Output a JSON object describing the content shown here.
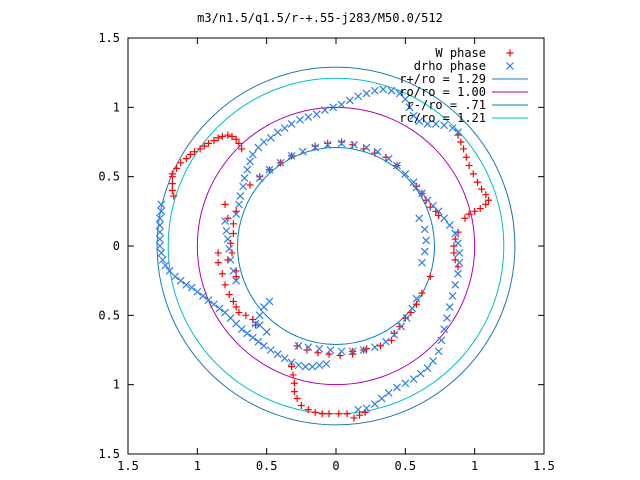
{
  "chart_data": {
    "type": "scatter",
    "title": "m3/n1.5/q1.5/r-+.55-j283/M50.0/512",
    "xlim": [
      -1.5,
      1.5
    ],
    "ylim": [
      -1.5,
      1.5
    ],
    "xticks": [
      {
        "value": -1.5,
        "label": "1.5"
      },
      {
        "value": -1,
        "label": "1"
      },
      {
        "value": -0.5,
        "label": "0.5"
      },
      {
        "value": 0,
        "label": "0"
      },
      {
        "value": 0.5,
        "label": "0.5"
      },
      {
        "value": 1,
        "label": "1"
      },
      {
        "value": 1.5,
        "label": "1.5"
      }
    ],
    "yticks": [
      {
        "value": 1.5,
        "label": "1.5"
      },
      {
        "value": 1,
        "label": "1"
      },
      {
        "value": 0.5,
        "label": "0.5"
      },
      {
        "value": 0,
        "label": "0"
      },
      {
        "value": -0.5,
        "label": "0.5"
      },
      {
        "value": -1,
        "label": "1"
      },
      {
        "value": -1.5,
        "label": "1.5"
      }
    ],
    "grid": false,
    "legend_position": "top-right",
    "series": [
      {
        "name": "W phase",
        "marker": "plus",
        "color": "#ff0000",
        "points": [
          [
            -1.18,
            0.52
          ],
          [
            -1.15,
            0.56
          ],
          [
            -1.12,
            0.6
          ],
          [
            -1.08,
            0.63
          ],
          [
            -1.05,
            0.66
          ],
          [
            -1.02,
            0.68
          ],
          [
            -0.98,
            0.7
          ],
          [
            -0.95,
            0.72
          ],
          [
            -0.92,
            0.74
          ],
          [
            -0.88,
            0.76
          ],
          [
            -0.85,
            0.78
          ],
          [
            -0.82,
            0.79
          ],
          [
            -0.78,
            0.8
          ],
          [
            -0.75,
            0.79
          ],
          [
            -0.72,
            0.77
          ],
          [
            -0.7,
            0.74
          ],
          [
            -0.68,
            0.7
          ],
          [
            -1.18,
            0.5
          ],
          [
            -1.18,
            0.45
          ],
          [
            -1.18,
            0.4
          ],
          [
            -1.17,
            0.36
          ],
          [
            0.88,
            0.8
          ],
          [
            0.9,
            0.75
          ],
          [
            0.92,
            0.7
          ],
          [
            0.94,
            0.64
          ],
          [
            0.96,
            0.58
          ],
          [
            0.99,
            0.52
          ],
          [
            1.02,
            0.46
          ],
          [
            1.05,
            0.41
          ],
          [
            1.08,
            0.37
          ],
          [
            1.1,
            0.33
          ],
          [
            1.08,
            0.3
          ],
          [
            1.04,
            0.27
          ],
          [
            1.0,
            0.25
          ],
          [
            0.96,
            0.23
          ],
          [
            0.93,
            0.2
          ],
          [
            0.88,
            0.1
          ],
          [
            0.86,
            0.05
          ],
          [
            0.85,
            0.0
          ],
          [
            0.85,
            -0.05
          ],
          [
            0.86,
            -0.1
          ],
          [
            0.88,
            -0.15
          ],
          [
            -0.32,
            -0.87
          ],
          [
            -0.31,
            -0.93
          ],
          [
            -0.3,
            -0.99
          ],
          [
            -0.3,
            -1.05
          ],
          [
            -0.28,
            -1.1
          ],
          [
            -0.25,
            -1.15
          ],
          [
            -0.2,
            -1.18
          ],
          [
            -0.15,
            -1.2
          ],
          [
            -0.1,
            -1.21
          ],
          [
            -0.05,
            -1.21
          ],
          [
            0.02,
            -1.21
          ],
          [
            0.08,
            -1.21
          ],
          [
            0.13,
            -1.24
          ],
          [
            0.17,
            -1.22
          ],
          [
            0.21,
            -1.2
          ],
          [
            -0.85,
            -0.05
          ],
          [
            -0.85,
            -0.12
          ],
          [
            -0.82,
            -0.2
          ],
          [
            -0.8,
            -0.28
          ],
          [
            -0.77,
            -0.35
          ],
          [
            -0.74,
            -0.4
          ],
          [
            -0.72,
            -0.44
          ],
          [
            -0.7,
            -0.48
          ],
          [
            -0.65,
            -0.5
          ],
          [
            -0.6,
            -0.53
          ],
          [
            -0.58,
            -0.57
          ],
          [
            -0.72,
            -0.22
          ],
          [
            -0.72,
            -0.18
          ],
          [
            -0.78,
            -0.1
          ],
          [
            -0.75,
            -0.05
          ],
          [
            -0.76,
            0.02
          ],
          [
            -0.74,
            0.09
          ],
          [
            -0.74,
            0.16
          ],
          [
            -0.72,
            0.25
          ],
          [
            -0.78,
            0.2
          ],
          [
            -0.8,
            0.3
          ],
          [
            -0.62,
            0.44
          ],
          [
            -0.55,
            0.5
          ],
          [
            -0.48,
            0.55
          ],
          [
            -0.4,
            0.6
          ],
          [
            -0.32,
            0.65
          ],
          [
            -0.15,
            0.72
          ],
          [
            -0.06,
            0.74
          ],
          [
            0.04,
            0.75
          ],
          [
            0.12,
            0.73
          ],
          [
            0.2,
            0.7
          ],
          [
            0.28,
            0.67
          ],
          [
            0.36,
            0.64
          ],
          [
            0.44,
            0.58
          ],
          [
            0.58,
            0.43
          ],
          [
            0.62,
            0.38
          ],
          [
            0.65,
            0.33
          ],
          [
            0.68,
            0.28
          ],
          [
            0.72,
            0.25
          ],
          [
            0.74,
            0.22
          ],
          [
            0.68,
            -0.22
          ],
          [
            0.62,
            -0.34
          ],
          [
            0.58,
            -0.42
          ],
          [
            0.54,
            -0.48
          ],
          [
            0.5,
            -0.52
          ],
          [
            0.46,
            -0.58
          ],
          [
            0.42,
            -0.63
          ],
          [
            0.2,
            -0.75
          ],
          [
            0.12,
            -0.78
          ],
          [
            0.03,
            -0.79
          ],
          [
            -0.05,
            -0.78
          ],
          [
            -0.13,
            -0.77
          ],
          [
            -0.21,
            -0.75
          ],
          [
            -0.28,
            -0.72
          ],
          [
            0.12,
            -0.76
          ],
          [
            0.22,
            -0.74
          ],
          [
            0.32,
            -0.72
          ],
          [
            0.4,
            -0.68
          ]
        ]
      },
      {
        "name": "drho phase",
        "marker": "cross",
        "color": "#2f7ee6",
        "points": [
          [
            -1.26,
            0.3
          ],
          [
            -1.26,
            0.25
          ],
          [
            -1.27,
            0.2
          ],
          [
            -1.27,
            0.15
          ],
          [
            -1.27,
            0.1
          ],
          [
            -1.27,
            0.05
          ],
          [
            -1.27,
            0.0
          ],
          [
            -1.26,
            -0.05
          ],
          [
            -1.25,
            -0.1
          ],
          [
            -1.23,
            -0.14
          ],
          [
            -1.2,
            -0.18
          ],
          [
            -1.16,
            -0.22
          ],
          [
            -1.12,
            -0.25
          ],
          [
            -1.08,
            -0.28
          ],
          [
            -1.04,
            -0.3
          ],
          [
            -1.0,
            -0.33
          ],
          [
            -0.96,
            -0.36
          ],
          [
            -0.92,
            -0.39
          ],
          [
            -0.88,
            -0.42
          ],
          [
            -0.84,
            -0.45
          ],
          [
            -0.8,
            -0.48
          ],
          [
            -0.76,
            -0.52
          ],
          [
            -0.72,
            -0.56
          ],
          [
            -0.68,
            -0.6
          ],
          [
            -0.64,
            -0.63
          ],
          [
            -0.6,
            -0.66
          ],
          [
            -0.56,
            -0.69
          ],
          [
            -0.52,
            -0.72
          ],
          [
            -0.47,
            -0.75
          ],
          [
            -0.42,
            -0.78
          ],
          [
            -0.37,
            -0.81
          ],
          [
            -0.32,
            -0.84
          ],
          [
            -0.27,
            -0.86
          ],
          [
            -0.22,
            -0.87
          ],
          [
            -0.17,
            -0.87
          ],
          [
            -0.12,
            -0.86
          ],
          [
            -0.07,
            -0.85
          ],
          [
            -0.72,
            0.23
          ],
          [
            -0.7,
            0.3
          ],
          [
            -0.69,
            0.36
          ],
          [
            -0.67,
            0.43
          ],
          [
            -0.66,
            0.49
          ],
          [
            -0.64,
            0.55
          ],
          [
            -0.62,
            0.61
          ],
          [
            -0.6,
            0.66
          ],
          [
            -0.56,
            0.71
          ],
          [
            -0.52,
            0.75
          ],
          [
            -0.47,
            0.78
          ],
          [
            -0.42,
            0.82
          ],
          [
            -0.37,
            0.85
          ],
          [
            -0.32,
            0.88
          ],
          [
            -0.26,
            0.91
          ],
          [
            -0.2,
            0.93
          ],
          [
            -0.14,
            0.95
          ],
          [
            -0.08,
            0.98
          ],
          [
            -0.02,
            1.0
          ],
          [
            0.04,
            1.02
          ],
          [
            0.1,
            1.05
          ],
          [
            0.16,
            1.08
          ],
          [
            0.22,
            1.1
          ],
          [
            0.28,
            1.12
          ],
          [
            0.34,
            1.13
          ],
          [
            0.4,
            1.12
          ],
          [
            0.46,
            1.1
          ],
          [
            0.5,
            1.06
          ],
          [
            0.53,
            1.0
          ],
          [
            0.56,
            0.94
          ],
          [
            0.6,
            0.9
          ],
          [
            0.66,
            0.88
          ],
          [
            0.72,
            0.88
          ],
          [
            0.78,
            0.87
          ],
          [
            0.84,
            0.85
          ],
          [
            0.88,
            0.82
          ],
          [
            -0.72,
            -0.25
          ],
          [
            -0.74,
            -0.18
          ],
          [
            -0.76,
            -0.1
          ],
          [
            -0.77,
            -0.02
          ],
          [
            -0.78,
            0.05
          ],
          [
            -0.79,
            0.11
          ],
          [
            -0.8,
            0.18
          ],
          [
            0.56,
            0.46
          ],
          [
            0.58,
            0.42
          ],
          [
            0.62,
            0.38
          ],
          [
            0.66,
            0.33
          ],
          [
            0.7,
            0.29
          ],
          [
            0.74,
            0.25
          ],
          [
            0.78,
            0.2
          ],
          [
            0.82,
            0.15
          ],
          [
            0.86,
            0.09
          ],
          [
            0.88,
            0.02
          ],
          [
            0.89,
            -0.05
          ],
          [
            0.89,
            -0.12
          ],
          [
            0.88,
            -0.2
          ],
          [
            0.86,
            -0.28
          ],
          [
            0.84,
            -0.36
          ],
          [
            0.82,
            -0.44
          ],
          [
            0.8,
            -0.52
          ],
          [
            0.78,
            -0.6
          ],
          [
            0.76,
            -0.68
          ],
          [
            0.74,
            -0.76
          ],
          [
            0.7,
            -0.83
          ],
          [
            0.66,
            -0.88
          ],
          [
            0.61,
            -0.92
          ],
          [
            0.56,
            -0.96
          ],
          [
            0.5,
            -0.99
          ],
          [
            0.44,
            -1.02
          ],
          [
            0.38,
            -1.06
          ],
          [
            0.33,
            -1.1
          ],
          [
            0.28,
            -1.14
          ],
          [
            0.22,
            -1.17
          ],
          [
            0.16,
            -1.18
          ],
          [
            -0.27,
            -0.72
          ],
          [
            -0.2,
            -0.73
          ],
          [
            -0.12,
            -0.74
          ],
          [
            -0.04,
            -0.75
          ],
          [
            0.04,
            -0.76
          ],
          [
            0.12,
            -0.76
          ],
          [
            0.2,
            -0.75
          ],
          [
            0.28,
            -0.73
          ],
          [
            0.36,
            -0.69
          ],
          [
            0.42,
            -0.64
          ],
          [
            0.47,
            -0.58
          ],
          [
            0.51,
            -0.52
          ],
          [
            0.55,
            -0.45
          ],
          [
            0.58,
            -0.38
          ],
          [
            -0.55,
            0.49
          ],
          [
            -0.48,
            0.55
          ],
          [
            -0.4,
            0.6
          ],
          [
            -0.32,
            0.65
          ],
          [
            -0.24,
            0.68
          ],
          [
            -0.15,
            0.71
          ],
          [
            -0.06,
            0.73
          ],
          [
            0.04,
            0.74
          ],
          [
            0.13,
            0.73
          ],
          [
            0.22,
            0.71
          ],
          [
            0.3,
            0.68
          ],
          [
            0.38,
            0.63
          ],
          [
            0.44,
            0.58
          ],
          [
            0.5,
            0.52
          ],
          [
            -0.58,
            -0.56
          ],
          [
            -0.55,
            -0.5
          ],
          [
            -0.52,
            -0.44
          ],
          [
            -0.48,
            -0.4
          ],
          [
            -0.55,
            -0.57
          ],
          [
            -0.5,
            -0.62
          ],
          [
            0.62,
            -0.12
          ],
          [
            0.64,
            -0.04
          ],
          [
            0.65,
            0.04
          ],
          [
            0.64,
            0.12
          ],
          [
            0.6,
            0.2
          ]
        ]
      }
    ],
    "circles": [
      {
        "name": "r+/ro = 1.29",
        "r": 1.29,
        "color": "#1f78b4"
      },
      {
        "name": "ro/ro = 1.00",
        "r": 1.0,
        "color": "#b000b0"
      },
      {
        "name": "r-/ro = .71",
        "r": 0.71,
        "color": "#0080c0"
      },
      {
        "name": "rc/ro = 1.21",
        "r": 1.21,
        "color": "#00c0c0"
      }
    ]
  }
}
